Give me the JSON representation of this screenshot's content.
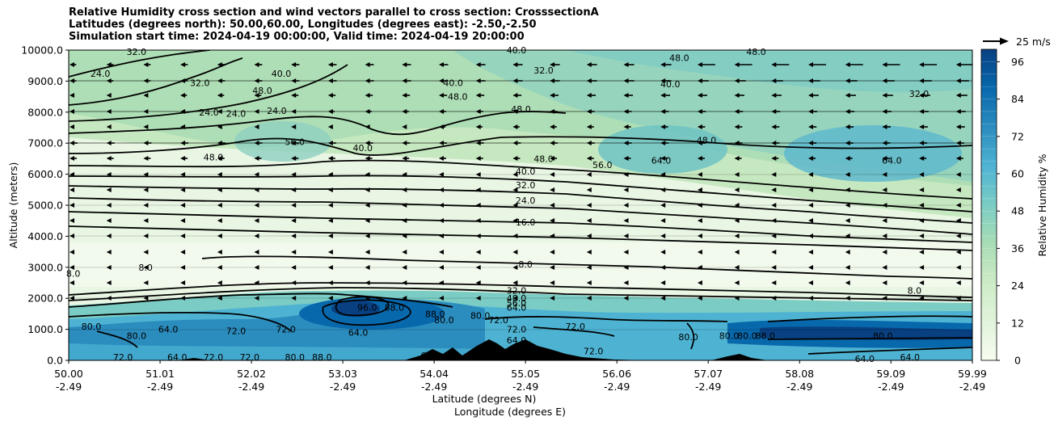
{
  "chart_data": {
    "type": "contour",
    "title_lines": [
      "Relative Humidity cross section and wind vectors parallel to cross section: CrosssectionA",
      "Latitudes (degrees north): 50.00,60.00, Longitudes (degrees east): -2.50,-2.50",
      "Simulation start time: 2024-04-19 00:00:00, Valid time: 2024-04-19 20:00:00"
    ],
    "ylabel": "Altitude (meters)",
    "xlabel_line1": "Latitude (degrees N)",
    "xlabel_line2": "Longitude (degrees E)",
    "ylim": [
      0,
      10000
    ],
    "xlim": [
      50.0,
      59.99
    ],
    "y_ticks": [
      "0.0",
      "1000.0",
      "2000.0",
      "3000.0",
      "4000.0",
      "5000.0",
      "6000.0",
      "7000.0",
      "8000.0",
      "9000.0",
      "10000.0"
    ],
    "y_tick_values": [
      0,
      1000,
      2000,
      3000,
      4000,
      5000,
      6000,
      7000,
      8000,
      9000,
      10000
    ],
    "x_ticks_lat": [
      "50.00",
      "51.01",
      "52.02",
      "53.03",
      "54.04",
      "55.05",
      "56.06",
      "57.07",
      "58.08",
      "59.09",
      "59.99"
    ],
    "x_ticks_lon": [
      "-2.49",
      "-2.49",
      "-2.49",
      "-2.49",
      "-2.49",
      "-2.49",
      "-2.49",
      "-2.49",
      "-2.49",
      "-2.49",
      "-2.49"
    ],
    "x_tick_values": [
      50.0,
      51.01,
      52.02,
      53.03,
      54.04,
      55.05,
      56.06,
      57.07,
      58.08,
      59.09,
      59.99
    ],
    "colorbar": {
      "label": "Relative Humidity %",
      "ticks": [
        "0",
        "12",
        "24",
        "36",
        "48",
        "60",
        "72",
        "84",
        "96"
      ],
      "tick_values": [
        0,
        12,
        24,
        36,
        48,
        60,
        72,
        84,
        96
      ],
      "range": [
        0,
        100
      ],
      "levels": 25,
      "colormap": "GnBu",
      "color_stops": [
        "#f7fcf0",
        "#e0f3db",
        "#ccebc5",
        "#a8ddb5",
        "#7bccc4",
        "#4eb3d3",
        "#2b8cbe",
        "#0868ac",
        "#084081"
      ]
    },
    "quiver_key": {
      "label": "25 m/s"
    },
    "contour_labels": [
      {
        "text": "24.0",
        "lat": 50.35,
        "alt": 9250
      },
      {
        "text": "32.0",
        "lat": 50.75,
        "alt": 9950
      },
      {
        "text": "32.0",
        "lat": 51.45,
        "alt": 8950
      },
      {
        "text": "24.0",
        "lat": 51.55,
        "alt": 8000
      },
      {
        "text": "24.0",
        "lat": 51.85,
        "alt": 7950
      },
      {
        "text": "48.0",
        "lat": 52.14,
        "alt": 8700
      },
      {
        "text": "40.0",
        "lat": 52.35,
        "alt": 9250
      },
      {
        "text": "24.0",
        "lat": 52.3,
        "alt": 8050
      },
      {
        "text": "56.0",
        "lat": 52.5,
        "alt": 7050
      },
      {
        "text": "48.0",
        "lat": 51.6,
        "alt": 6550
      },
      {
        "text": "40.0",
        "lat": 53.25,
        "alt": 6850
      },
      {
        "text": "48.0",
        "lat": 54.3,
        "alt": 8500
      },
      {
        "text": "40.0",
        "lat": 54.25,
        "alt": 8950
      },
      {
        "text": "40.0",
        "lat": 54.95,
        "alt": 10000
      },
      {
        "text": "32.0",
        "lat": 55.25,
        "alt": 9350
      },
      {
        "text": "48.0",
        "lat": 55.0,
        "alt": 8100
      },
      {
        "text": "48.0",
        "lat": 55.25,
        "alt": 6500
      },
      {
        "text": "40.0",
        "lat": 56.65,
        "alt": 8900
      },
      {
        "text": "48.0",
        "lat": 56.75,
        "alt": 9750
      },
      {
        "text": "48.0",
        "lat": 57.6,
        "alt": 9950
      },
      {
        "text": "56.0",
        "lat": 55.9,
        "alt": 6300
      },
      {
        "text": "64.0",
        "lat": 56.55,
        "alt": 6450
      },
      {
        "text": "48.0",
        "lat": 57.05,
        "alt": 7100
      },
      {
        "text": "32.0",
        "lat": 59.4,
        "alt": 8600
      },
      {
        "text": "64.0",
        "lat": 59.1,
        "alt": 6450
      },
      {
        "text": "40.0",
        "lat": 55.05,
        "alt": 6100
      },
      {
        "text": "32.0",
        "lat": 55.05,
        "alt": 5650
      },
      {
        "text": "24.0",
        "lat": 55.05,
        "alt": 5150
      },
      {
        "text": "16.0",
        "lat": 55.05,
        "alt": 4450
      },
      {
        "text": "8.0",
        "lat": 55.05,
        "alt": 3100
      },
      {
        "text": "8.0",
        "lat": 50.05,
        "alt": 2800
      },
      {
        "text": "8.0",
        "lat": 50.85,
        "alt": 3000
      },
      {
        "text": "8.0",
        "lat": 59.35,
        "alt": 2250
      },
      {
        "text": "32.0",
        "lat": 54.95,
        "alt": 2250
      },
      {
        "text": "48.0",
        "lat": 54.95,
        "alt": 2000
      },
      {
        "text": "56.0",
        "lat": 54.95,
        "alt": 1850
      },
      {
        "text": "64.0",
        "lat": 54.95,
        "alt": 1700
      },
      {
        "text": "72.0",
        "lat": 54.95,
        "alt": 1000
      },
      {
        "text": "64.0",
        "lat": 54.95,
        "alt": 650
      },
      {
        "text": "96.0",
        "lat": 53.3,
        "alt": 1700
      },
      {
        "text": "88.0",
        "lat": 53.6,
        "alt": 1700
      },
      {
        "text": "88.0",
        "lat": 54.05,
        "alt": 1500
      },
      {
        "text": "80.0",
        "lat": 54.15,
        "alt": 1300
      },
      {
        "text": "80.0",
        "lat": 54.55,
        "alt": 1450
      },
      {
        "text": "72.0",
        "lat": 54.75,
        "alt": 1300
      },
      {
        "text": "72.0",
        "lat": 55.6,
        "alt": 1100
      },
      {
        "text": "72.0",
        "lat": 52.4,
        "alt": 1000
      },
      {
        "text": "72.0",
        "lat": 51.85,
        "alt": 950
      },
      {
        "text": "64.0",
        "lat": 51.1,
        "alt": 1000
      },
      {
        "text": "80.0",
        "lat": 50.25,
        "alt": 1100
      },
      {
        "text": "80.0",
        "lat": 50.75,
        "alt": 800
      },
      {
        "text": "72.0",
        "lat": 50.6,
        "alt": 100
      },
      {
        "text": "64.0",
        "lat": 51.2,
        "alt": 100
      },
      {
        "text": "72.0",
        "lat": 51.6,
        "alt": 100
      },
      {
        "text": "72.0",
        "lat": 52.0,
        "alt": 100
      },
      {
        "text": "80.0",
        "lat": 52.5,
        "alt": 100
      },
      {
        "text": "88.0",
        "lat": 52.8,
        "alt": 100
      },
      {
        "text": "64.0",
        "lat": 53.2,
        "alt": 900
      },
      {
        "text": "64.0",
        "lat": 54.0,
        "alt": 150
      },
      {
        "text": "72.0",
        "lat": 55.8,
        "alt": 300
      },
      {
        "text": "80.0",
        "lat": 56.85,
        "alt": 750
      },
      {
        "text": "80.0",
        "lat": 57.3,
        "alt": 800
      },
      {
        "text": "80.0",
        "lat": 57.5,
        "alt": 800
      },
      {
        "text": "88.0",
        "lat": 57.7,
        "alt": 800
      },
      {
        "text": "80.0",
        "lat": 59.0,
        "alt": 800
      },
      {
        "text": "64.0",
        "lat": 58.8,
        "alt": 50
      },
      {
        "text": "64.0",
        "lat": 59.3,
        "alt": 100
      }
    ]
  }
}
